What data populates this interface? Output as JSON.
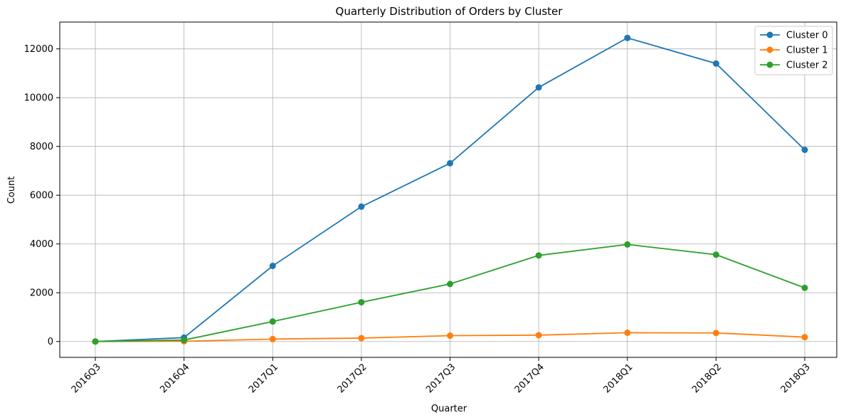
{
  "chart_data": {
    "type": "line",
    "title": "Quarterly Distribution of Orders by Cluster",
    "xlabel": "Quarter",
    "ylabel": "Count",
    "categories": [
      "2016Q3",
      "2016Q4",
      "2017Q1",
      "2017Q2",
      "2017Q3",
      "2017Q4",
      "2018Q1",
      "2018Q2",
      "2018Q3"
    ],
    "ylim": [
      -650,
      13100
    ],
    "yticks": [
      0,
      2000,
      4000,
      6000,
      8000,
      10000,
      12000
    ],
    "grid": true,
    "legend_position": "top-right",
    "marker": "circle",
    "series": [
      {
        "name": "Cluster 0",
        "color": "#1f77b4",
        "values": [
          0,
          160,
          3100,
          5530,
          7310,
          10420,
          12450,
          11400,
          7860
        ]
      },
      {
        "name": "Cluster 1",
        "color": "#ff7f0e",
        "values": [
          0,
          10,
          100,
          140,
          240,
          260,
          360,
          350,
          180
        ]
      },
      {
        "name": "Cluster 2",
        "color": "#2ca02c",
        "values": [
          0,
          60,
          820,
          1610,
          2360,
          3530,
          3980,
          3560,
          2200
        ]
      }
    ]
  }
}
